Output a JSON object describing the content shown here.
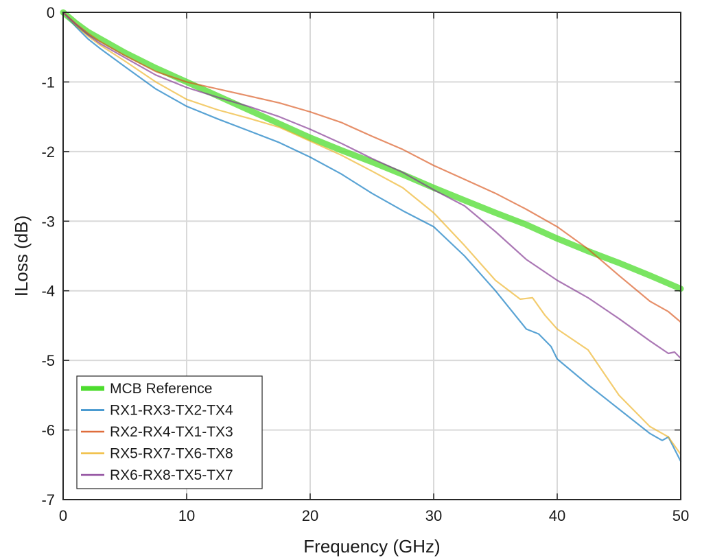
{
  "chart_data": {
    "type": "line",
    "xlabel": "Frequency (GHz)",
    "ylabel": "ILoss (dB)",
    "xlim": [
      0,
      50
    ],
    "ylim": [
      -7,
      0
    ],
    "xticks": [
      0,
      10,
      20,
      30,
      40,
      50
    ],
    "yticks": [
      0,
      -1,
      -2,
      -3,
      -4,
      -5,
      -6,
      -7
    ],
    "xtick_labels": [
      "0",
      "10",
      "20",
      "30",
      "40",
      "50"
    ],
    "ytick_labels": [
      "0",
      "-1",
      "-2",
      "-3",
      "-4",
      "-5",
      "-6",
      "-7"
    ],
    "grid": true,
    "legend_position": "bottom-left",
    "series": [
      {
        "name": "MCB Reference",
        "color": "#4ddc2e",
        "x": [
          0,
          1,
          2,
          3,
          5,
          7.5,
          10,
          12.5,
          15,
          17.5,
          20,
          22.5,
          25,
          27.5,
          30,
          32.5,
          35,
          37.5,
          40,
          42.5,
          45,
          47.5,
          50
        ],
        "y": [
          0,
          -0.15,
          -0.28,
          -0.38,
          -0.58,
          -0.8,
          -1.0,
          -1.2,
          -1.4,
          -1.6,
          -1.8,
          -1.98,
          -2.15,
          -2.33,
          -2.52,
          -2.7,
          -2.88,
          -3.05,
          -3.25,
          -3.43,
          -3.6,
          -3.78,
          -3.97
        ]
      },
      {
        "name": "RX1-RX3-TX2-TX4",
        "color": "#0072bd",
        "x": [
          0,
          1,
          2,
          3,
          5,
          7.5,
          10,
          12.5,
          15,
          17.5,
          20,
          22.5,
          25,
          27.5,
          30,
          32.5,
          35,
          37.5,
          38.5,
          39.5,
          40,
          42.5,
          45,
          47.5,
          48.5,
          49,
          50
        ],
        "y": [
          0,
          -0.2,
          -0.38,
          -0.52,
          -0.78,
          -1.1,
          -1.35,
          -1.53,
          -1.7,
          -1.87,
          -2.08,
          -2.32,
          -2.6,
          -2.85,
          -3.08,
          -3.5,
          -4.0,
          -4.55,
          -4.62,
          -4.8,
          -4.98,
          -5.35,
          -5.7,
          -6.05,
          -6.15,
          -6.1,
          -6.45
        ]
      },
      {
        "name": "RX2-RX4-TX1-TX3",
        "color": "#d95319",
        "x": [
          0,
          1,
          2,
          3,
          5,
          7.5,
          10,
          12.5,
          15,
          17.5,
          20,
          22.5,
          25,
          27.5,
          30,
          32.5,
          35,
          37.5,
          40,
          42.5,
          45,
          47.5,
          49,
          50
        ],
        "y": [
          0,
          -0.16,
          -0.3,
          -0.42,
          -0.62,
          -0.85,
          -1.0,
          -1.1,
          -1.2,
          -1.3,
          -1.43,
          -1.58,
          -1.78,
          -1.97,
          -2.2,
          -2.4,
          -2.6,
          -2.83,
          -3.08,
          -3.4,
          -3.78,
          -4.15,
          -4.3,
          -4.45
        ]
      },
      {
        "name": "RX5-RX7-TX6-TX8",
        "color": "#edb120",
        "x": [
          0,
          1,
          2,
          3,
          5,
          7.5,
          10,
          12.5,
          15,
          17.5,
          20,
          22.5,
          25,
          27.5,
          30,
          32.5,
          35,
          37,
          38,
          39,
          40,
          42.5,
          45,
          47.5,
          48.5,
          49,
          50
        ],
        "y": [
          0,
          -0.18,
          -0.34,
          -0.47,
          -0.7,
          -1.0,
          -1.25,
          -1.4,
          -1.52,
          -1.65,
          -1.85,
          -2.05,
          -2.28,
          -2.52,
          -2.88,
          -3.35,
          -3.85,
          -4.12,
          -4.1,
          -4.35,
          -4.55,
          -4.85,
          -5.5,
          -5.95,
          -6.05,
          -6.1,
          -6.35
        ]
      },
      {
        "name": "RX6-RX8-TX5-TX7",
        "color": "#7e2f8e",
        "x": [
          0,
          1,
          2,
          3,
          5,
          7.5,
          10,
          12.5,
          15,
          17.5,
          20,
          22.5,
          25,
          27.5,
          30,
          32.5,
          35,
          37.5,
          40,
          42.5,
          45,
          47.5,
          49,
          49.5,
          50
        ],
        "y": [
          0,
          -0.17,
          -0.32,
          -0.45,
          -0.65,
          -0.9,
          -1.08,
          -1.22,
          -1.35,
          -1.5,
          -1.68,
          -1.88,
          -2.1,
          -2.3,
          -2.55,
          -2.78,
          -3.15,
          -3.55,
          -3.85,
          -4.1,
          -4.4,
          -4.72,
          -4.9,
          -4.88,
          -4.97
        ]
      }
    ]
  }
}
